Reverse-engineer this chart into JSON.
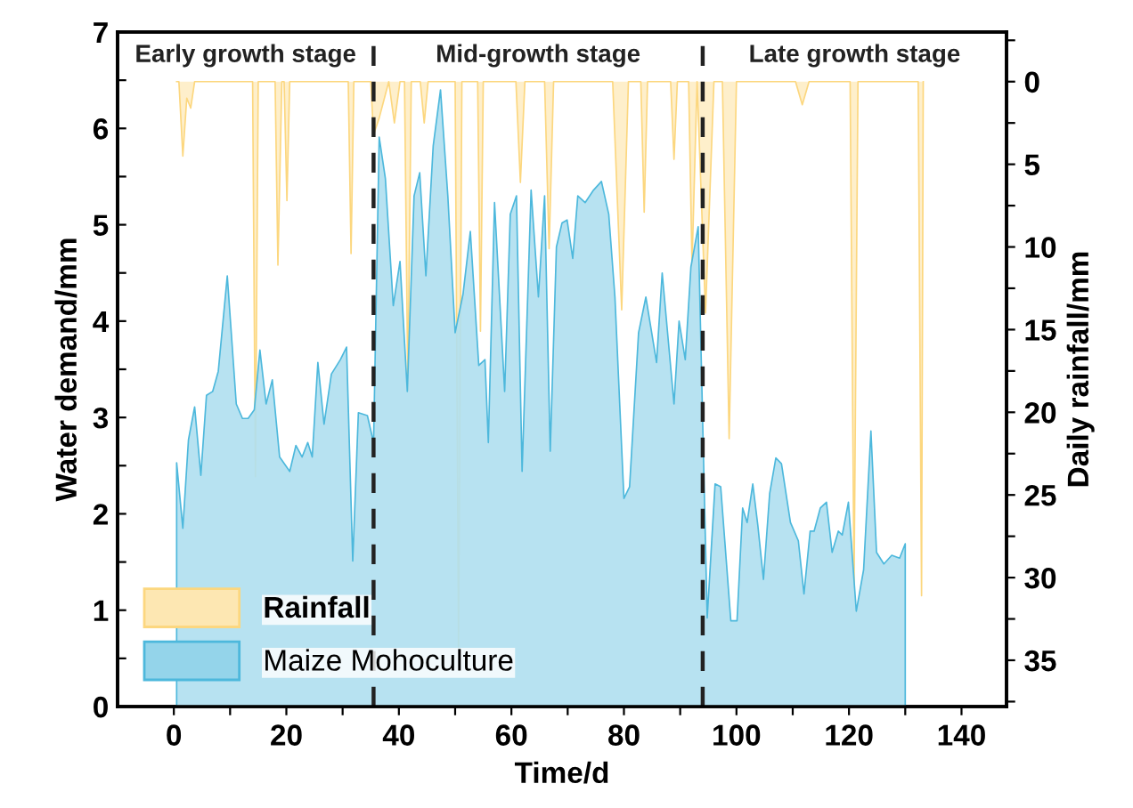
{
  "chart_data": {
    "type": "area",
    "xlabel": "Time/d",
    "ylabel": "Water demand/mm",
    "y2label": "Daily rainfall/mm",
    "xlim": [
      -10,
      148
    ],
    "ylim": [
      0,
      7
    ],
    "y2lim": [
      37.8,
      -3
    ],
    "xticks": [
      0,
      {
        "value": 10,
        "label": null
      },
      20,
      {
        "value": 30,
        "label": null
      },
      40,
      {
        "value": 50,
        "label": null
      },
      60,
      {
        "value": 70,
        "label": null
      },
      80,
      {
        "value": 90,
        "label": null
      },
      100,
      {
        "value": 110,
        "label": null
      },
      120,
      {
        "value": 130,
        "label": null
      },
      140
    ],
    "yticks": [
      0,
      {
        "value": 0.5,
        "label": null
      },
      1,
      {
        "value": 1.5,
        "label": null
      },
      2,
      {
        "value": 2.5,
        "label": null
      },
      3,
      {
        "value": 3.5,
        "label": null
      },
      4,
      {
        "value": 4.5,
        "label": null
      },
      5,
      {
        "value": 5.5,
        "label": null
      },
      6,
      {
        "value": 6.5,
        "label": null
      },
      7
    ],
    "y2ticks": [
      {
        "value": -2.5,
        "label": null
      },
      0,
      {
        "value": 2.5,
        "label": null
      },
      5,
      {
        "value": 7.5,
        "label": null
      },
      10,
      {
        "value": 12.5,
        "label": null
      },
      15,
      {
        "value": 17.5,
        "label": null
      },
      20,
      {
        "value": 22.5,
        "label": null
      },
      25,
      {
        "value": 27.5,
        "label": null
      },
      30,
      {
        "value": 32.5,
        "label": null
      },
      35,
      {
        "value": 37.5,
        "label": null
      }
    ],
    "legend": "bottom left",
    "grid": false,
    "ref_lines": [
      {
        "axis": "x",
        "value": 35.5,
        "label": null,
        "color": "#222222",
        "line_style": "dashed"
      },
      {
        "axis": "x",
        "value": 94,
        "label": null,
        "color": "#222222",
        "line_style": "dashed"
      }
    ],
    "annotations": [
      "Early growth stage",
      "Mid-growth stage",
      "Late growth stage"
    ],
    "series": [
      {
        "name": "Rainfall",
        "axis": "y2",
        "color": "#fcd77f",
        "x": [
          0.5,
          0.9,
          1.6,
          2.3,
          3.0,
          3.7,
          14.0,
          14.5,
          15.0,
          18.0,
          18.5,
          19.2,
          19.6,
          20.1,
          20.6,
          31.0,
          31.5,
          32.0,
          35.0,
          35.5,
          36.5,
          38.2,
          39.2,
          40.2,
          41.0,
          41.6,
          42.2,
          43.8,
          44.5,
          45.2,
          50.0,
          50.6,
          51.2,
          54.0,
          54.5,
          55.0,
          60.8,
          61.6,
          62.4,
          65.9,
          66.7,
          67.5,
          78.0,
          79.6,
          80.8,
          83.0,
          83.6,
          84.2,
          88.3,
          88.9,
          89.5,
          91.5,
          92.1,
          93.0,
          94.5,
          96.0,
          97.5,
          98.7,
          100.0,
          110.5,
          111.7,
          112.9,
          120.2,
          120.9,
          121.6,
          132.3,
          132.9,
          133.2
        ],
        "values": [
          0,
          0,
          4.5,
          1,
          1.6,
          0,
          0,
          23.9,
          0,
          0,
          11.1,
          0,
          0,
          7.2,
          0,
          0,
          10.4,
          0,
          0,
          3.2,
          2.2,
          0,
          2.5,
          0,
          0,
          18.7,
          0,
          0,
          2.5,
          0,
          0,
          34.2,
          0,
          0,
          15.1,
          0,
          0,
          6.1,
          0,
          0,
          10.1,
          0,
          0,
          13.8,
          0,
          0,
          7.9,
          0,
          0,
          4.7,
          0,
          0,
          11.1,
          0,
          14,
          0,
          0,
          21.6,
          0,
          0,
          1.4,
          0,
          0,
          30.6,
          0,
          0,
          31.1,
          0
        ]
      },
      {
        "name": "Maize Mohoculture",
        "color": "#4db8dc",
        "x": [
          0.5,
          0.5,
          1.6,
          2.6,
          3.7,
          4.8,
          5.8,
          6.9,
          7.9,
          9.5,
          11.1,
          12.2,
          13.2,
          14.3,
          15.3,
          16.4,
          17.5,
          18.8,
          20.6,
          21.7,
          22.8,
          23.8,
          24.6,
          25.6,
          26.7,
          28.0,
          29.6,
          30.7,
          31.8,
          32.8,
          34.4,
          35.5,
          36.5,
          37.6,
          39.0,
          40.2,
          41.5,
          42.7,
          43.7,
          44.8,
          46.1,
          47.4,
          48.7,
          50.0,
          51.4,
          52.7,
          54.2,
          55.3,
          55.9,
          57.0,
          58.8,
          59.8,
          60.9,
          61.9,
          63.5,
          64.8,
          65.9,
          66.9,
          68.0,
          69.0,
          69.9,
          70.9,
          71.8,
          73.1,
          74.6,
          76.0,
          77.3,
          78.4,
          80.0,
          81.0,
          82.6,
          83.9,
          85.8,
          86.8,
          88.9,
          89.8,
          90.9,
          91.9,
          93.2,
          94.8,
          96.2,
          97.2,
          99.0,
          100.1,
          101.1,
          101.9,
          102.9,
          103.8,
          104.8,
          105.9,
          107.0,
          108.0,
          109.6,
          111.0,
          112.0,
          113.1,
          113.8,
          114.9,
          116.0,
          117.0,
          118.1,
          118.8,
          119.9,
          121.3,
          122.6,
          123.9,
          124.9,
          126.2,
          127.6,
          129.0,
          130.0,
          130.0
        ],
        "values": [
          0,
          2.53,
          1.85,
          2.77,
          3.11,
          2.4,
          3.23,
          3.27,
          3.48,
          4.47,
          3.14,
          2.99,
          2.99,
          3.08,
          3.7,
          3.14,
          3.39,
          2.59,
          2.44,
          2.71,
          2.59,
          2.74,
          2.59,
          3.57,
          2.93,
          3.45,
          3.6,
          3.73,
          1.51,
          3.05,
          3.02,
          2.74,
          5.91,
          5.48,
          4.16,
          4.62,
          3.27,
          5.3,
          5.54,
          4.47,
          5.82,
          6.4,
          5.3,
          3.88,
          4.28,
          4.93,
          3.54,
          3.6,
          2.74,
          5.23,
          3.27,
          5.11,
          5.3,
          2.44,
          5.36,
          4.25,
          5.3,
          2.65,
          4.77,
          5.02,
          5.05,
          4.65,
          5.3,
          5.23,
          5.36,
          5.45,
          5.11,
          4.25,
          2.16,
          2.28,
          3.88,
          4.25,
          3.57,
          4.5,
          3.14,
          4.0,
          3.6,
          4.56,
          4.98,
          0.92,
          2.31,
          2.28,
          0.89,
          0.89,
          2.06,
          1.91,
          2.31,
          1.88,
          1.32,
          2.21,
          2.58,
          2.52,
          1.91,
          1.72,
          1.17,
          1.82,
          1.82,
          2.06,
          2.12,
          1.6,
          1.82,
          1.78,
          2.12,
          0.99,
          1.42,
          2.86,
          1.6,
          1.48,
          1.57,
          1.54,
          1.69,
          0
        ]
      }
    ]
  }
}
